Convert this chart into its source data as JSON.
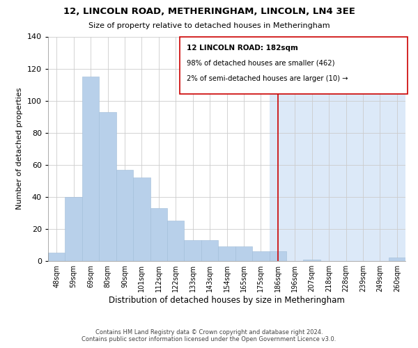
{
  "title": "12, LINCOLN ROAD, METHERINGHAM, LINCOLN, LN4 3EE",
  "subtitle": "Size of property relative to detached houses in Metheringham",
  "xlabel": "Distribution of detached houses by size in Metheringham",
  "ylabel": "Number of detached properties",
  "categories": [
    "48sqm",
    "59sqm",
    "69sqm",
    "80sqm",
    "90sqm",
    "101sqm",
    "112sqm",
    "122sqm",
    "133sqm",
    "143sqm",
    "154sqm",
    "165sqm",
    "175sqm",
    "186sqm",
    "196sqm",
    "207sqm",
    "218sqm",
    "228sqm",
    "239sqm",
    "249sqm",
    "260sqm"
  ],
  "values": [
    5,
    40,
    115,
    93,
    57,
    52,
    33,
    25,
    13,
    13,
    9,
    9,
    6,
    6,
    0,
    1,
    0,
    0,
    0,
    0,
    2
  ],
  "highlight_index": 13,
  "bar_color": "#b8d0ea",
  "highlight_shade": "#dce9f8",
  "vline_color": "#cc0000",
  "annotation_title": "12 LINCOLN ROAD: 182sqm",
  "annotation_line1": "98% of detached houses are smaller (462)",
  "annotation_line2": "2% of semi-detached houses are larger (10) →",
  "footer": "Contains HM Land Registry data © Crown copyright and database right 2024.\nContains public sector information licensed under the Open Government Licence v3.0.",
  "ylim": [
    0,
    140
  ],
  "yticks": [
    0,
    20,
    40,
    60,
    80,
    100,
    120,
    140
  ],
  "background_color": "#ffffff",
  "grid_color": "#cccccc"
}
